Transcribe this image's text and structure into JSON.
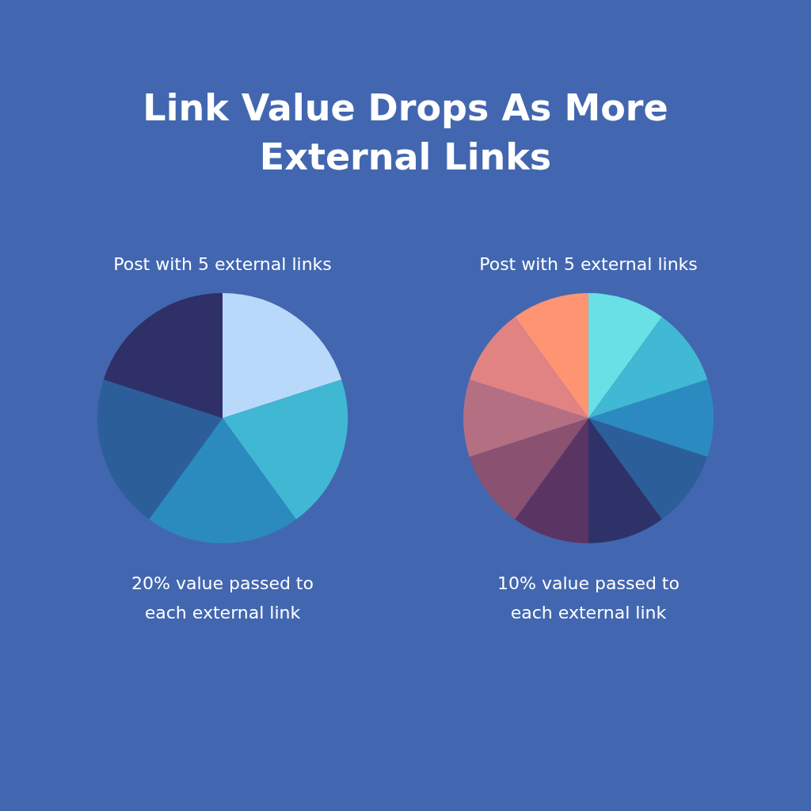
{
  "chart_data": [
    {
      "type": "pie",
      "title": "Link Value Drops As More External Links",
      "subtitle": "Post with 5 external links",
      "categories": [
        null,
        null,
        null,
        null,
        null
      ],
      "values": [
        20,
        20,
        20,
        20,
        20
      ],
      "colors": [
        "#b9d9fb",
        "#40b8d4",
        "#2b8bbf",
        "#2c5f9a",
        "#2f3068"
      ],
      "annotations": [
        "20% value passed to each external link"
      ]
    },
    {
      "type": "pie",
      "subtitle": "Post with 5 external links",
      "categories": [
        null,
        null,
        null,
        null,
        null,
        null,
        null,
        null,
        null,
        null
      ],
      "values": [
        10,
        10,
        10,
        10,
        10,
        10,
        10,
        10,
        10,
        10
      ],
      "colors": [
        "#68e0e6",
        "#41b8d4",
        "#2b8bc0",
        "#2c5f9a",
        "#2f3268",
        "#5a3563",
        "#8a5171",
        "#b56f82",
        "#e08382",
        "#ff9473"
      ],
      "annotations": [
        "10% value passed to each external link"
      ]
    }
  ]
}
